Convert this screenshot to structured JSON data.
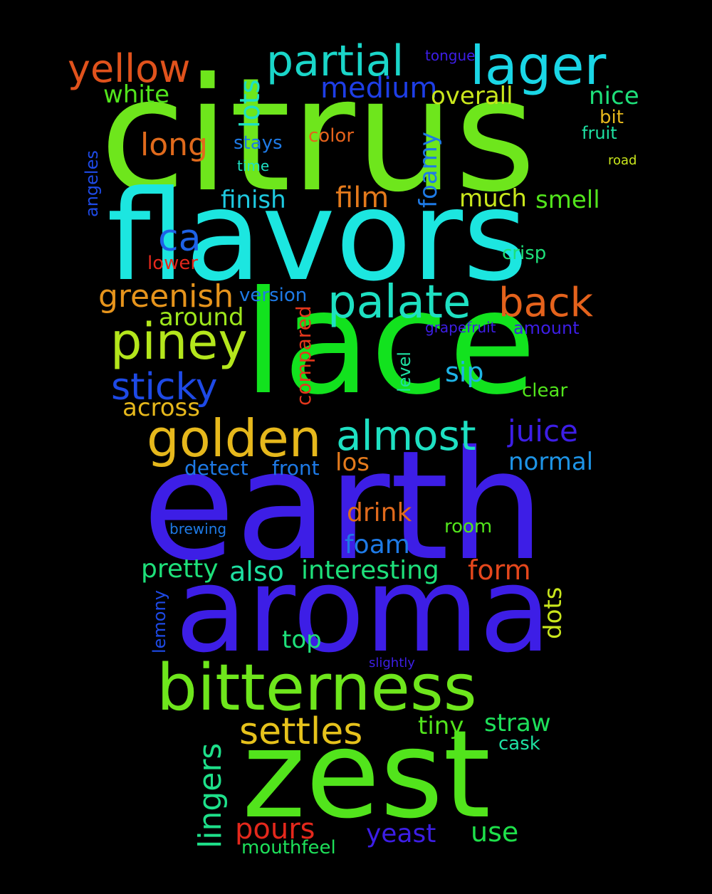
{
  "words": [
    {
      "text": "citrus",
      "color": "#6ee61c"
    },
    {
      "text": "flavors",
      "color": "#1ce6e0"
    },
    {
      "text": "lace",
      "color": "#12e21e"
    },
    {
      "text": "earth",
      "color": "#3d1ee6"
    },
    {
      "text": "aroma",
      "color": "#3d1ee6"
    },
    {
      "text": "zest",
      "color": "#52e41c"
    },
    {
      "text": "bitterness",
      "color": "#6ee61c"
    },
    {
      "text": "lager",
      "color": "#1ad6e6"
    },
    {
      "text": "partial",
      "color": "#1ad6c9"
    },
    {
      "text": "yellow",
      "color": "#e0521c"
    },
    {
      "text": "golden",
      "color": "#e6b81c"
    },
    {
      "text": "piney",
      "color": "#b4e61c"
    },
    {
      "text": "palate",
      "color": "#1ee0c2"
    },
    {
      "text": "back",
      "color": "#e4621c"
    },
    {
      "text": "almost",
      "color": "#1ee0c2"
    },
    {
      "text": "sticky",
      "color": "#1e4ae6"
    },
    {
      "text": "settles",
      "color": "#e6c21c"
    },
    {
      "text": "ca",
      "color": "#1e62e6"
    },
    {
      "text": "greenish",
      "color": "#e6941c"
    },
    {
      "text": "medium",
      "color": "#1e3ee6"
    },
    {
      "text": "long",
      "color": "#e06a1c"
    },
    {
      "text": "film",
      "color": "#e47a1c"
    },
    {
      "text": "juice",
      "color": "#3d1ee6"
    },
    {
      "text": "lots",
      "color": "#1ee0c2"
    },
    {
      "text": "white",
      "color": "#52e41c"
    },
    {
      "text": "overall",
      "color": "#c9e61c"
    },
    {
      "text": "nice",
      "color": "#1ee07a"
    },
    {
      "text": "finish",
      "color": "#1ec9e0"
    },
    {
      "text": "much",
      "color": "#c9e61c"
    },
    {
      "text": "smell",
      "color": "#52e41c"
    },
    {
      "text": "foamy",
      "color": "#1e7ae6"
    },
    {
      "text": "form",
      "color": "#e4471c"
    },
    {
      "text": "pretty",
      "color": "#1ee07a"
    },
    {
      "text": "also",
      "color": "#1ee0a2"
    },
    {
      "text": "interesting",
      "color": "#1ee07a"
    },
    {
      "text": "around",
      "color": "#9ee61c"
    },
    {
      "text": "across",
      "color": "#e6b81c"
    },
    {
      "text": "sip",
      "color": "#1eb4e6"
    },
    {
      "text": "normal",
      "color": "#1e94e6"
    },
    {
      "text": "drink",
      "color": "#e06a1c"
    },
    {
      "text": "foam",
      "color": "#1e7ae6"
    },
    {
      "text": "lingers",
      "color": "#1ee08a"
    },
    {
      "text": "pours",
      "color": "#e4281c"
    },
    {
      "text": "yeast",
      "color": "#3d1ee6"
    },
    {
      "text": "use",
      "color": "#1ee04a"
    },
    {
      "text": "straw",
      "color": "#1ee05a"
    },
    {
      "text": "tiny",
      "color": "#52e41c"
    },
    {
      "text": "top",
      "color": "#1ee07a"
    },
    {
      "text": "dots",
      "color": "#c9e61c"
    },
    {
      "text": "compared",
      "color": "#e4371c"
    },
    {
      "text": "los",
      "color": "#e47a1c"
    },
    {
      "text": "detect",
      "color": "#1e7ae6"
    },
    {
      "text": "front",
      "color": "#1e7ae6"
    },
    {
      "text": "room",
      "color": "#52e41c"
    },
    {
      "text": "clear",
      "color": "#52e41c"
    },
    {
      "text": "crisp",
      "color": "#1ee07a"
    },
    {
      "text": "version",
      "color": "#1e7ae6"
    },
    {
      "text": "stays",
      "color": "#1e7ae6"
    },
    {
      "text": "color",
      "color": "#e4621c"
    },
    {
      "text": "bit",
      "color": "#e6b81c"
    },
    {
      "text": "fruit",
      "color": "#1ee0a2"
    },
    {
      "text": "time",
      "color": "#1ee0c2"
    },
    {
      "text": "road",
      "color": "#c9e61c"
    },
    {
      "text": "tongue",
      "color": "#3d1ee6"
    },
    {
      "text": "angeles",
      "color": "#1e4ae6"
    },
    {
      "text": "lower",
      "color": "#e4281c"
    },
    {
      "text": "level",
      "color": "#1ee0a2"
    },
    {
      "text": "grapefruit",
      "color": "#3d1ee6"
    },
    {
      "text": "amount",
      "color": "#3d1ee6"
    },
    {
      "text": "brewing",
      "color": "#1e7ae6"
    },
    {
      "text": "lemony",
      "color": "#1e4ae6"
    },
    {
      "text": "slightly",
      "color": "#3d1ee6"
    },
    {
      "text": "mouthfeel",
      "color": "#1ee05a"
    },
    {
      "text": "cask",
      "color": "#1ee0a2"
    }
  ]
}
